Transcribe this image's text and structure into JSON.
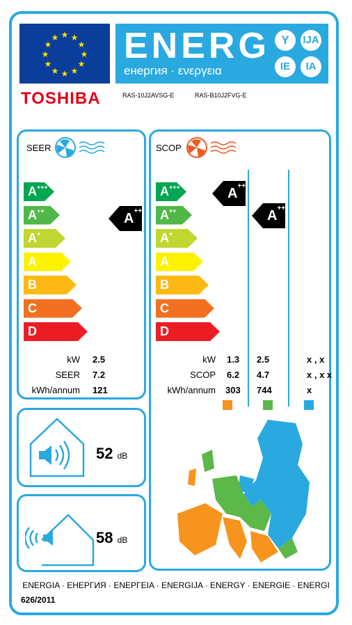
{
  "header": {
    "energy_word": "ENERG",
    "languages": "енергия · ενεργεια",
    "suffixes": [
      "Y",
      "IJA",
      "IE",
      "IA"
    ]
  },
  "brand": "TOSHIBA",
  "models": {
    "indoor": "RAS-10J2AVSG-E",
    "outdoor": "RAS-B10J2FVG-E"
  },
  "classes": [
    {
      "letter": "A",
      "sup": "+++",
      "color": "#00a651"
    },
    {
      "letter": "A",
      "sup": "++",
      "color": "#50b848"
    },
    {
      "letter": "A",
      "sup": "+",
      "color": "#bfd730"
    },
    {
      "letter": "A",
      "sup": "",
      "color": "#fff200"
    },
    {
      "letter": "B",
      "sup": "",
      "color": "#fdb913"
    },
    {
      "letter": "C",
      "sup": "",
      "color": "#f37021"
    },
    {
      "letter": "D",
      "sup": "",
      "color": "#ed1c24"
    }
  ],
  "seer": {
    "title": "SEER",
    "rating": {
      "letter": "A",
      "sup": "++"
    },
    "rows": [
      {
        "label": "kW",
        "value": "2.5"
      },
      {
        "label": "SEER",
        "value": "7.2"
      },
      {
        "label": "kWh/annum",
        "value": "121"
      }
    ]
  },
  "scop": {
    "title": "SCOP",
    "ratings": [
      {
        "letter": "A",
        "sup": "+++"
      },
      {
        "letter": "A",
        "sup": "++"
      }
    ],
    "rows": [
      {
        "label": "kW",
        "values": [
          "1.3",
          "2.5",
          "x , x"
        ]
      },
      {
        "label": "SCOP",
        "values": [
          "6.2",
          "4.7",
          "x , x x"
        ]
      },
      {
        "label": "kWh/annum",
        "values": [
          "303",
          "744",
          "x"
        ]
      }
    ],
    "zone_colors": [
      "#f7941d",
      "#5cb848",
      "#29a9e0"
    ]
  },
  "noise_indoor": {
    "value": "52",
    "unit": "dB"
  },
  "noise_outdoor": {
    "value": "58",
    "unit": "dB"
  },
  "footer": "ENERGIA · ЕНЕРГИЯ · ΕΝΕΡΓΕΙΑ · ENERGIJA · ENERGY · ENERGIE · ENERGI",
  "regulation": "626/2011"
}
